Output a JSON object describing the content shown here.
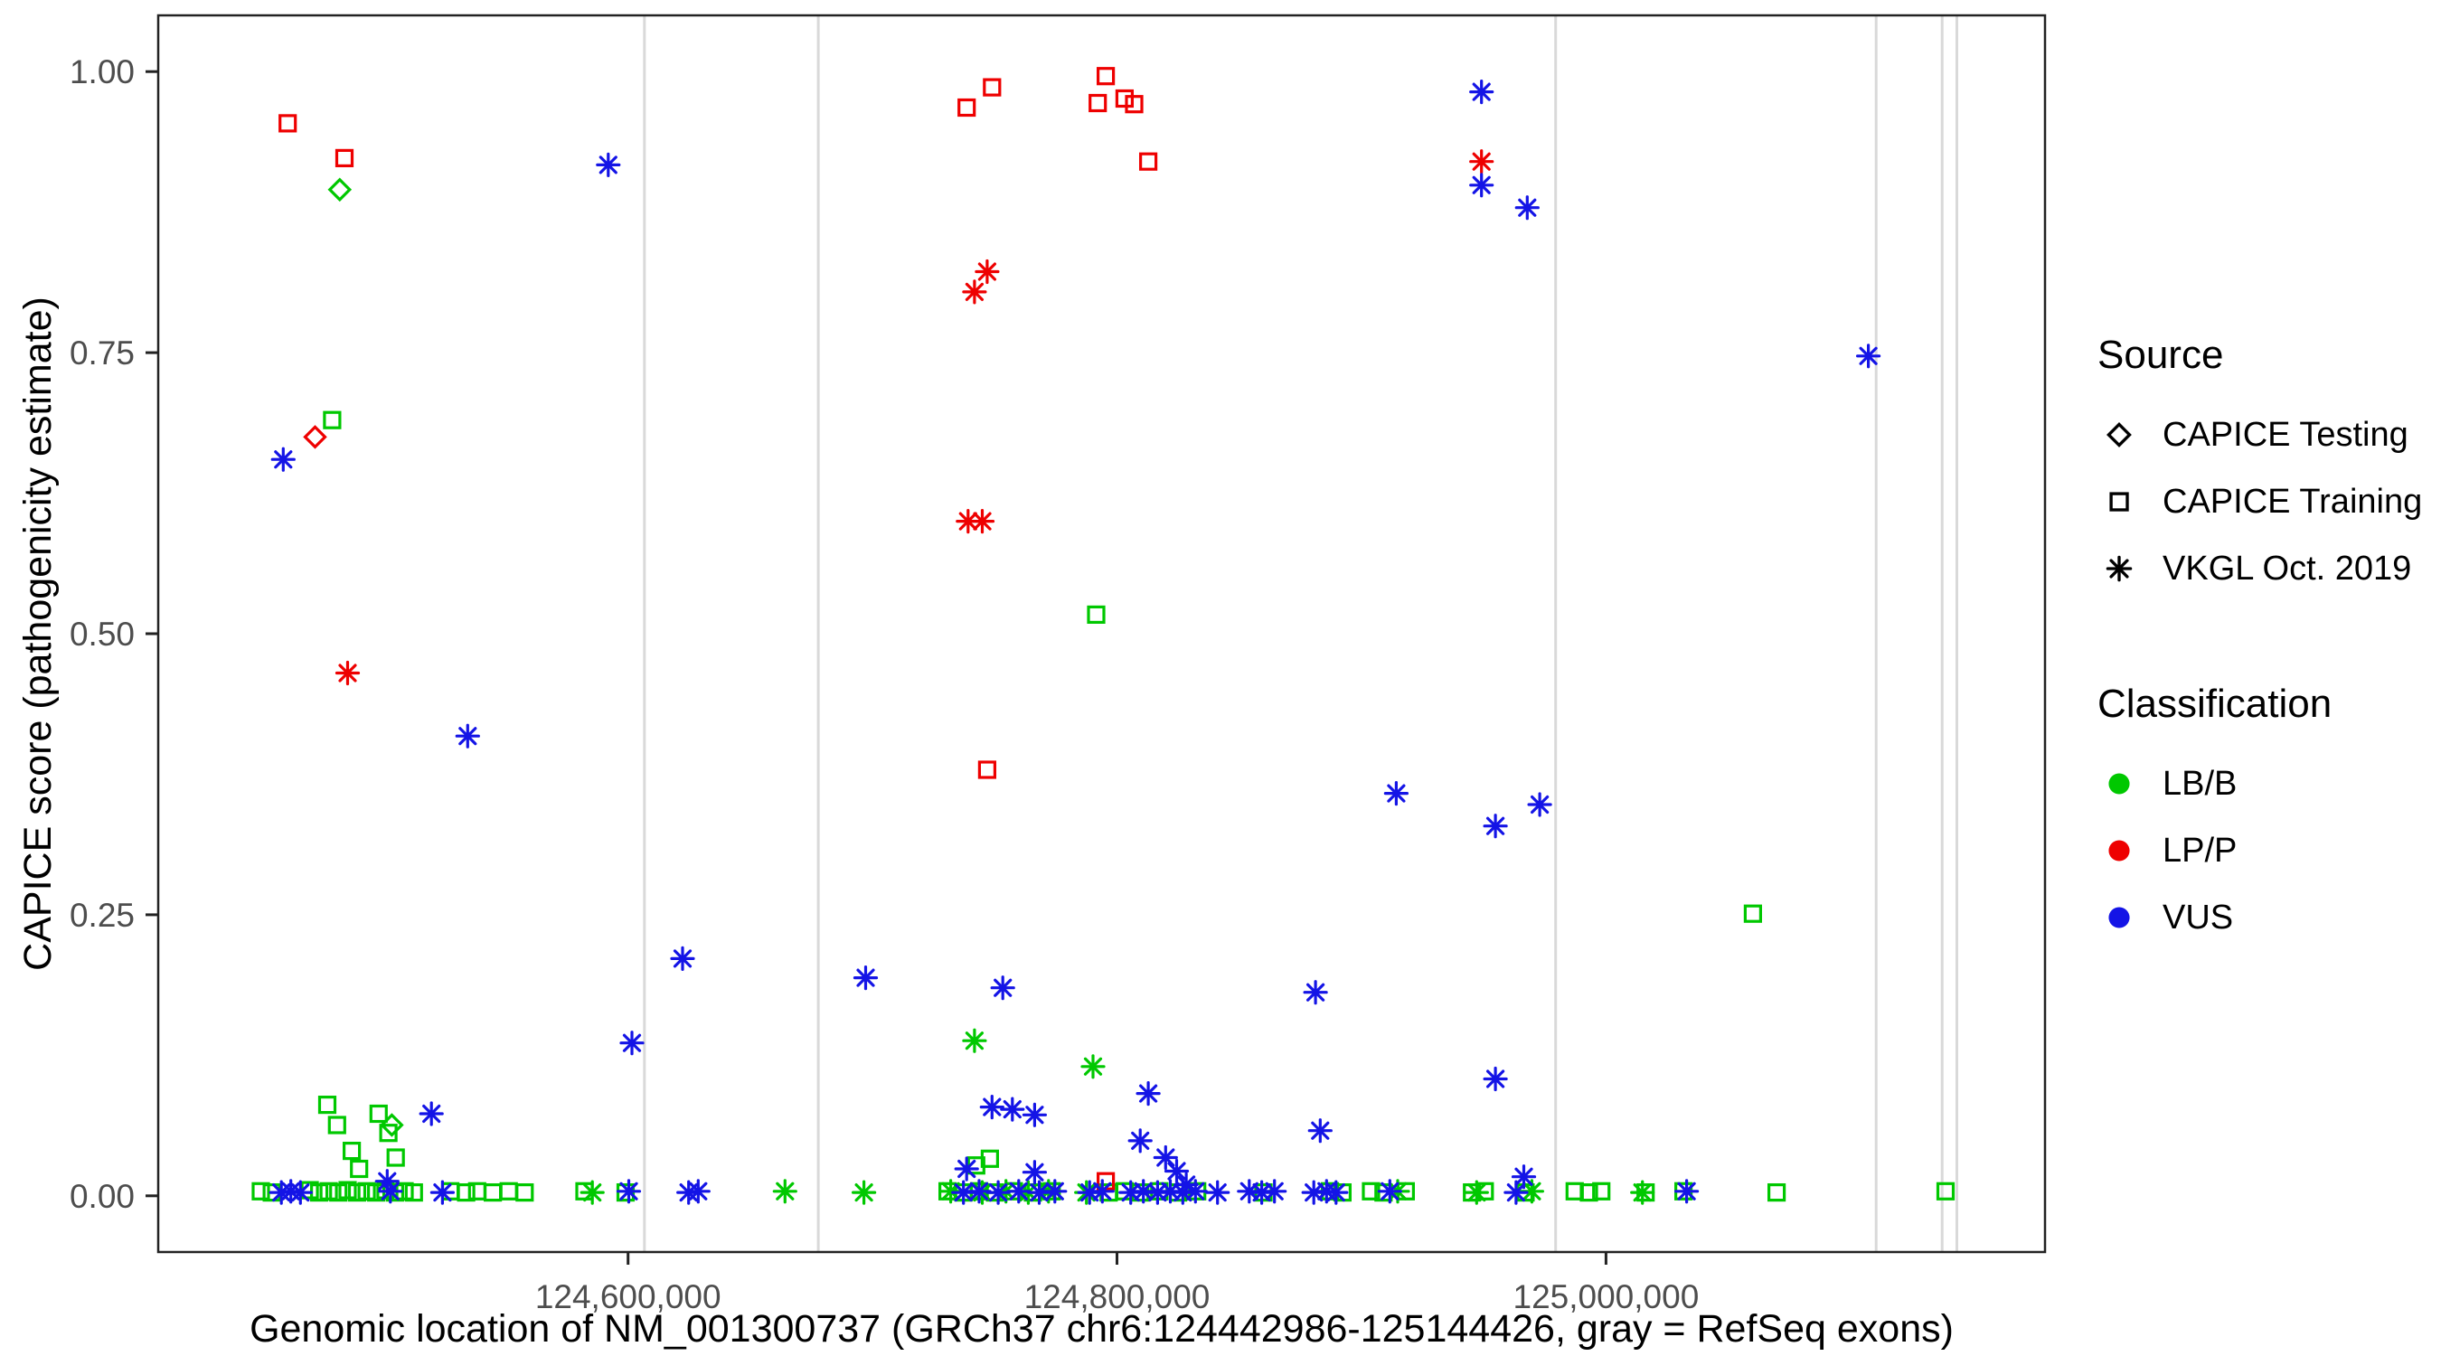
{
  "window": {
    "background": "#ffffff"
  },
  "legend": {
    "source": {
      "title": "Source",
      "items": [
        {
          "label": "CAPICE Testing",
          "marker": "diamond",
          "color": "#000000"
        },
        {
          "label": "CAPICE Training",
          "marker": "square",
          "color": "#000000"
        },
        {
          "label": "VKGL Oct. 2019",
          "marker": "asterisk",
          "color": "#000000"
        }
      ]
    },
    "classification": {
      "title": "Classification",
      "items": [
        {
          "label": "LB/B",
          "marker": "circle",
          "color": "#00C800"
        },
        {
          "label": "LP/P",
          "marker": "circle",
          "color": "#EE0000"
        },
        {
          "label": "VUS",
          "marker": "circle",
          "color": "#1414E6"
        }
      ]
    }
  },
  "chart_data": {
    "type": "scatter",
    "title": "",
    "xlabel": "Genomic location of NM_001300737 (GRCh37 chr6:124442986-125144426, gray = RefSeq exons)",
    "ylabel": "CAPICE score (pathogenicity estimate)",
    "xlim": [
      124407842,
      125179570
    ],
    "ylim": [
      -0.05,
      1.05
    ],
    "grid": "none",
    "legend_position": "right",
    "x_ticks": [
      {
        "value": 124600000,
        "label": "124,600,000"
      },
      {
        "value": 124800000,
        "label": "124,800,000"
      },
      {
        "value": 125000000,
        "label": "125,000,000"
      }
    ],
    "y_ticks": [
      {
        "value": 0,
        "label": "0.00"
      },
      {
        "value": 0.25,
        "label": "0.25"
      },
      {
        "value": 0.5,
        "label": "0.50"
      },
      {
        "value": 0.75,
        "label": "0.75"
      },
      {
        "value": 1,
        "label": "1.00"
      }
    ],
    "exon_color": "#d9d9d9",
    "exon_lines": [
      124606700,
      124677800,
      124979400,
      125110500,
      125137500,
      125143500
    ],
    "series": [
      {
        "name": "CAPICE Testing - LB/B",
        "source": "CAPICE Testing",
        "classification": "LB/B",
        "marker": "diamond",
        "color": "#00C800",
        "points": [
          [
            124482100,
            0.895
          ],
          [
            124503400,
            0.063
          ]
        ]
      },
      {
        "name": "CAPICE Testing - LP/P",
        "source": "CAPICE Testing",
        "classification": "LP/P",
        "marker": "diamond",
        "color": "#EE0000",
        "points": [
          [
            124472000,
            0.675
          ]
        ]
      },
      {
        "name": "CAPICE Training - LB/B",
        "source": "CAPICE Training",
        "classification": "LB/B",
        "marker": "square",
        "color": "#00C800",
        "points": [
          [
            124479000,
            0.69
          ],
          [
            124791500,
            0.517
          ],
          [
            125060100,
            0.251
          ],
          [
            124477000,
            0.081
          ],
          [
            124481000,
            0.063
          ],
          [
            124487000,
            0.04
          ],
          [
            124490000,
            0.024
          ],
          [
            124498000,
            0.073
          ],
          [
            124502000,
            0.056
          ],
          [
            124505000,
            0.034
          ],
          [
            124742400,
            0.027
          ],
          [
            124748000,
            0.033
          ],
          [
            124449800,
            0.004
          ],
          [
            124454300,
            0.003
          ],
          [
            124469800,
            0.005
          ],
          [
            124473700,
            0.003
          ],
          [
            124477600,
            0.004
          ],
          [
            124481500,
            0.003
          ],
          [
            124485300,
            0.005
          ],
          [
            124489200,
            0.003
          ],
          [
            124493100,
            0.004
          ],
          [
            124497000,
            0.003
          ],
          [
            124500800,
            0.005
          ],
          [
            124504700,
            0.003
          ],
          [
            124508600,
            0.004
          ],
          [
            124512400,
            0.003
          ],
          [
            124527300,
            0.004
          ],
          [
            124533800,
            0.003
          ],
          [
            124538300,
            0.004
          ],
          [
            124544700,
            0.003
          ],
          [
            124551200,
            0.004
          ],
          [
            124557700,
            0.003
          ],
          [
            124582200,
            0.004
          ],
          [
            124599000,
            0.003
          ],
          [
            124730700,
            0.004
          ],
          [
            124737200,
            0.003
          ],
          [
            124743600,
            0.004
          ],
          [
            124750100,
            0.003
          ],
          [
            124757800,
            0.004
          ],
          [
            124765600,
            0.003
          ],
          [
            124773300,
            0.004
          ],
          [
            124796600,
            0.003
          ],
          [
            124803100,
            0.004
          ],
          [
            124809500,
            0.003
          ],
          [
            124817300,
            0.004
          ],
          [
            124825000,
            0.003
          ],
          [
            124832800,
            0.004
          ],
          [
            124859900,
            0.003
          ],
          [
            124887100,
            0.004
          ],
          [
            124892200,
            0.003
          ],
          [
            124903900,
            0.004
          ],
          [
            124909000,
            0.003
          ],
          [
            124918100,
            0.004
          ],
          [
            124945200,
            0.003
          ],
          [
            124950400,
            0.004
          ],
          [
            124967100,
            0.003
          ],
          [
            124987200,
            0.004
          ],
          [
            124993000,
            0.003
          ],
          [
            124998100,
            0.004
          ],
          [
            125016200,
            0.003
          ],
          [
            125031700,
            0.004
          ],
          [
            125069800,
            0.003
          ],
          [
            125138900,
            0.004
          ]
        ]
      },
      {
        "name": "CAPICE Training - LP/P",
        "source": "CAPICE Training",
        "classification": "LP/P",
        "marker": "square",
        "color": "#EE0000",
        "points": [
          [
            124460800,
            0.954
          ],
          [
            124484000,
            0.923
          ],
          [
            124738500,
            0.968
          ],
          [
            124748900,
            0.986
          ],
          [
            124792100,
            0.972
          ],
          [
            124795400,
            0.996
          ],
          [
            124803100,
            0.976
          ],
          [
            124807000,
            0.971
          ],
          [
            124812800,
            0.92
          ],
          [
            124746900,
            0.379
          ],
          [
            124795400,
            0.013
          ]
        ]
      },
      {
        "name": "VKGL Oct. 2019 - LB/B",
        "source": "VKGL Oct. 2019",
        "classification": "LB/B",
        "marker": "asterisk",
        "color": "#00C800",
        "points": [
          [
            124741700,
            0.138
          ],
          [
            124790200,
            0.115
          ],
          [
            124585400,
            0.003
          ],
          [
            124664200,
            0.004
          ],
          [
            124696500,
            0.003
          ],
          [
            124732000,
            0.004
          ],
          [
            124744900,
            0.003
          ],
          [
            124754600,
            0.004
          ],
          [
            124763700,
            0.003
          ],
          [
            124772000,
            0.004
          ],
          [
            124787500,
            0.003
          ],
          [
            124914800,
            0.004
          ],
          [
            124947100,
            0.003
          ],
          [
            124969700,
            0.004
          ],
          [
            125014900,
            0.003
          ]
        ]
      },
      {
        "name": "VKGL Oct. 2019 - LP/P",
        "source": "VKGL Oct. 2019",
        "classification": "LP/P",
        "marker": "asterisk",
        "color": "#EE0000",
        "points": [
          [
            124746900,
            0.822
          ],
          [
            124741700,
            0.804
          ],
          [
            124739100,
            0.6
          ],
          [
            124744900,
            0.6
          ],
          [
            124485300,
            0.465
          ],
          [
            124949100,
            0.92
          ]
        ]
      },
      {
        "name": "VKGL Oct. 2019 - VUS",
        "source": "VKGL Oct. 2019",
        "classification": "VUS",
        "marker": "asterisk",
        "color": "#1414E6",
        "points": [
          [
            124591900,
            0.917
          ],
          [
            124949100,
            0.982
          ],
          [
            124949100,
            0.899
          ],
          [
            124967800,
            0.879
          ],
          [
            125107300,
            0.747
          ],
          [
            124459000,
            0.655
          ],
          [
            124534400,
            0.409
          ],
          [
            124914200,
            0.358
          ],
          [
            124972900,
            0.348
          ],
          [
            124954800,
            0.329
          ],
          [
            124622300,
            0.211
          ],
          [
            124697200,
            0.194
          ],
          [
            124753300,
            0.185
          ],
          [
            124881200,
            0.181
          ],
          [
            124601600,
            0.136
          ],
          [
            124954800,
            0.104
          ],
          [
            124812800,
            0.091
          ],
          [
            124519600,
            0.073
          ],
          [
            124748900,
            0.079
          ],
          [
            124757200,
            0.077
          ],
          [
            124766300,
            0.072
          ],
          [
            124883100,
            0.058
          ],
          [
            124809500,
            0.049
          ],
          [
            124819900,
            0.034
          ],
          [
            124824400,
            0.022
          ],
          [
            124738500,
            0.024
          ],
          [
            124766300,
            0.021
          ],
          [
            124966400,
            0.017
          ],
          [
            124501500,
            0.013
          ],
          [
            124828300,
            0.01
          ],
          [
            124458200,
            0.003
          ],
          [
            124462100,
            0.004
          ],
          [
            124466000,
            0.003
          ],
          [
            124502800,
            0.004
          ],
          [
            124524100,
            0.003
          ],
          [
            124600300,
            0.004
          ],
          [
            124624800,
            0.003
          ],
          [
            124628700,
            0.004
          ],
          [
            124737200,
            0.003
          ],
          [
            124743600,
            0.004
          ],
          [
            124751400,
            0.003
          ],
          [
            124759800,
            0.004
          ],
          [
            124768200,
            0.003
          ],
          [
            124774600,
            0.004
          ],
          [
            124788800,
            0.003
          ],
          [
            124794000,
            0.004
          ],
          [
            124805600,
            0.003
          ],
          [
            124810800,
            0.004
          ],
          [
            124816600,
            0.003
          ],
          [
            124821800,
            0.004
          ],
          [
            124826900,
            0.003
          ],
          [
            124832100,
            0.004
          ],
          [
            124841100,
            0.003
          ],
          [
            124854100,
            0.004
          ],
          [
            124859200,
            0.003
          ],
          [
            124864400,
            0.004
          ],
          [
            124880500,
            0.003
          ],
          [
            124885700,
            0.004
          ],
          [
            124889600,
            0.003
          ],
          [
            124911600,
            0.004
          ],
          [
            124963200,
            0.003
          ],
          [
            125033000,
            0.004
          ]
        ]
      }
    ]
  }
}
